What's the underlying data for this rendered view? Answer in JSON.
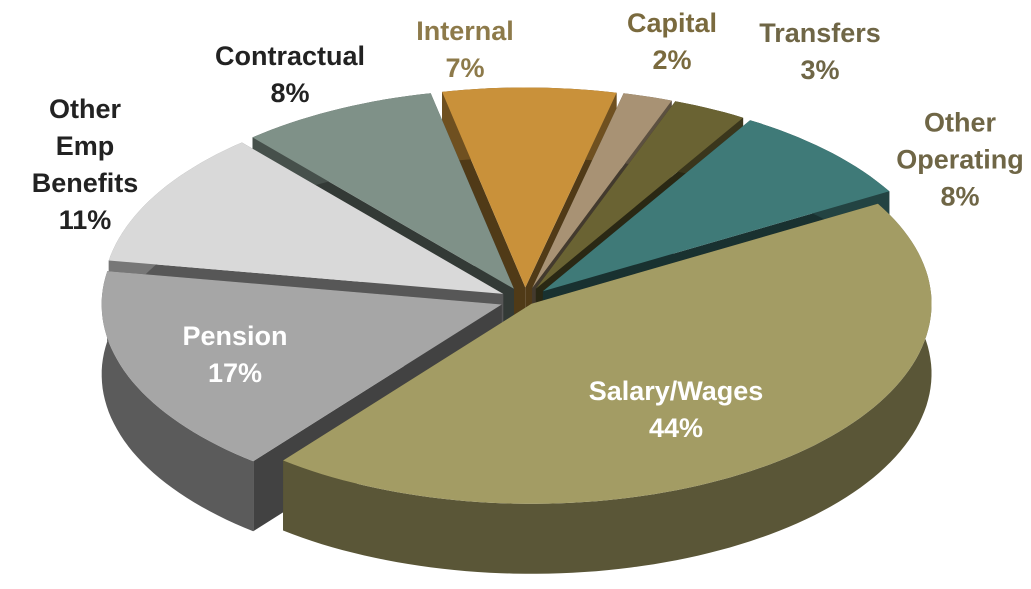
{
  "chart_data": {
    "type": "pie3d",
    "categories": [
      "Salary/Wages",
      "Pension",
      "Other Emp Benefits",
      "Contractual",
      "Internal",
      "Capital",
      "Transfers",
      "Other Operating"
    ],
    "values": [
      44,
      17,
      11,
      8,
      7,
      2,
      3,
      8
    ],
    "value_labels": [
      "44%",
      "17%",
      "11%",
      "8%",
      "7%",
      "2%",
      "3%",
      "8%"
    ],
    "colors": [
      "#a39c64",
      "#a6a6a6",
      "#d9d9d9",
      "#7f9188",
      "#c9913a",
      "#a89274",
      "#6a6333",
      "#3f7a78"
    ]
  }
}
